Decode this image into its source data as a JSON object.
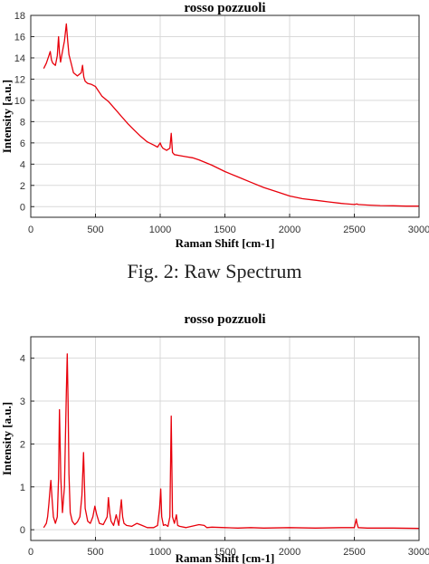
{
  "figure": {
    "caption": "Fig. 2: Raw Spectrum"
  },
  "colors": {
    "series": "#e8000b",
    "grid": "#d9d9d9",
    "axis": "#262626"
  },
  "chart_data": [
    {
      "type": "line",
      "title": "rosso pozzuoli",
      "xlabel": "Raman Shift [cm-1]",
      "ylabel": "Intensity [a.u.]",
      "xlim": [
        0,
        3000
      ],
      "ylim": [
        -1,
        18
      ],
      "xticks": [
        0,
        500,
        1000,
        1500,
        2000,
        2500,
        3000
      ],
      "yticks": [
        0,
        2,
        4,
        6,
        8,
        10,
        12,
        14,
        16,
        18
      ],
      "grid": true,
      "series": [
        {
          "x": [
            100,
            120,
            140,
            150,
            160,
            170,
            190,
            205,
            215,
            222,
            230,
            245,
            260,
            275,
            285,
            295,
            310,
            330,
            360,
            390,
            400,
            410,
            420,
            440,
            470,
            500,
            550,
            600,
            650,
            700,
            750,
            800,
            850,
            900,
            950,
            980,
            1000,
            1010,
            1020,
            1050,
            1075,
            1085,
            1095,
            1110,
            1150,
            1200,
            1250,
            1300,
            1400,
            1500,
            1600,
            1700,
            1800,
            1900,
            2000,
            2100,
            2200,
            2300,
            2400,
            2500,
            2520,
            2530,
            2600,
            2700,
            2800,
            2900,
            3000
          ],
          "y": [
            13.0,
            13.5,
            14.2,
            14.6,
            13.8,
            13.5,
            13.3,
            14.2,
            16.0,
            14.5,
            13.6,
            14.6,
            15.6,
            17.2,
            15.6,
            14.3,
            13.6,
            12.6,
            12.3,
            12.6,
            13.3,
            12.2,
            11.8,
            11.6,
            11.5,
            11.3,
            10.4,
            9.9,
            9.2,
            8.5,
            7.8,
            7.2,
            6.6,
            6.1,
            5.8,
            5.6,
            6.0,
            5.7,
            5.5,
            5.3,
            5.5,
            6.9,
            5.1,
            4.9,
            4.8,
            4.7,
            4.6,
            4.4,
            3.9,
            3.3,
            2.8,
            2.3,
            1.8,
            1.4,
            1.0,
            0.75,
            0.6,
            0.45,
            0.3,
            0.2,
            0.25,
            0.2,
            0.15,
            0.1,
            0.08,
            0.05,
            0.05
          ]
        }
      ]
    },
    {
      "type": "line",
      "title": "rosso pozzuoli",
      "xlabel": "Raman Shift [cm-1]",
      "ylabel": "Intensity [a.u.]",
      "xlim": [
        0,
        3000
      ],
      "ylim": [
        -0.25,
        4.5
      ],
      "xticks": [
        0,
        500,
        1000,
        1500,
        2000,
        2500,
        3000
      ],
      "yticks": [
        0,
        1,
        2,
        3,
        4
      ],
      "grid": true,
      "series": [
        {
          "x": [
            100,
            120,
            130,
            140,
            150,
            155,
            165,
            175,
            190,
            205,
            215,
            222,
            232,
            245,
            260,
            275,
            282,
            288,
            295,
            305,
            320,
            340,
            360,
            380,
            395,
            408,
            420,
            440,
            460,
            480,
            495,
            510,
            530,
            560,
            590,
            600,
            610,
            620,
            640,
            660,
            680,
            700,
            710,
            720,
            740,
            780,
            820,
            860,
            900,
            950,
            980,
            995,
            1004,
            1012,
            1025,
            1040,
            1060,
            1075,
            1085,
            1095,
            1110,
            1125,
            1135,
            1150,
            1200,
            1300,
            1340,
            1360,
            1400,
            1500,
            1600,
            1700,
            1800,
            2000,
            2200,
            2400,
            2500,
            2515,
            2520,
            2530,
            2600,
            2800,
            3000
          ],
          "y": [
            0.05,
            0.15,
            0.3,
            0.6,
            1.0,
            1.15,
            0.7,
            0.3,
            0.15,
            0.3,
            1.2,
            2.8,
            1.2,
            0.4,
            1.0,
            3.2,
            4.1,
            3.0,
            1.3,
            0.4,
            0.2,
            0.12,
            0.18,
            0.3,
            0.8,
            1.8,
            0.5,
            0.2,
            0.15,
            0.3,
            0.55,
            0.35,
            0.15,
            0.12,
            0.3,
            0.75,
            0.4,
            0.2,
            0.1,
            0.35,
            0.1,
            0.7,
            0.3,
            0.15,
            0.1,
            0.08,
            0.15,
            0.1,
            0.05,
            0.05,
            0.1,
            0.5,
            0.95,
            0.3,
            0.1,
            0.12,
            0.08,
            0.3,
            2.65,
            0.3,
            0.15,
            0.35,
            0.1,
            0.08,
            0.05,
            0.12,
            0.1,
            0.05,
            0.06,
            0.05,
            0.04,
            0.05,
            0.04,
            0.05,
            0.04,
            0.05,
            0.05,
            0.25,
            0.15,
            0.05,
            0.04,
            0.04,
            0.03
          ]
        }
      ]
    }
  ]
}
